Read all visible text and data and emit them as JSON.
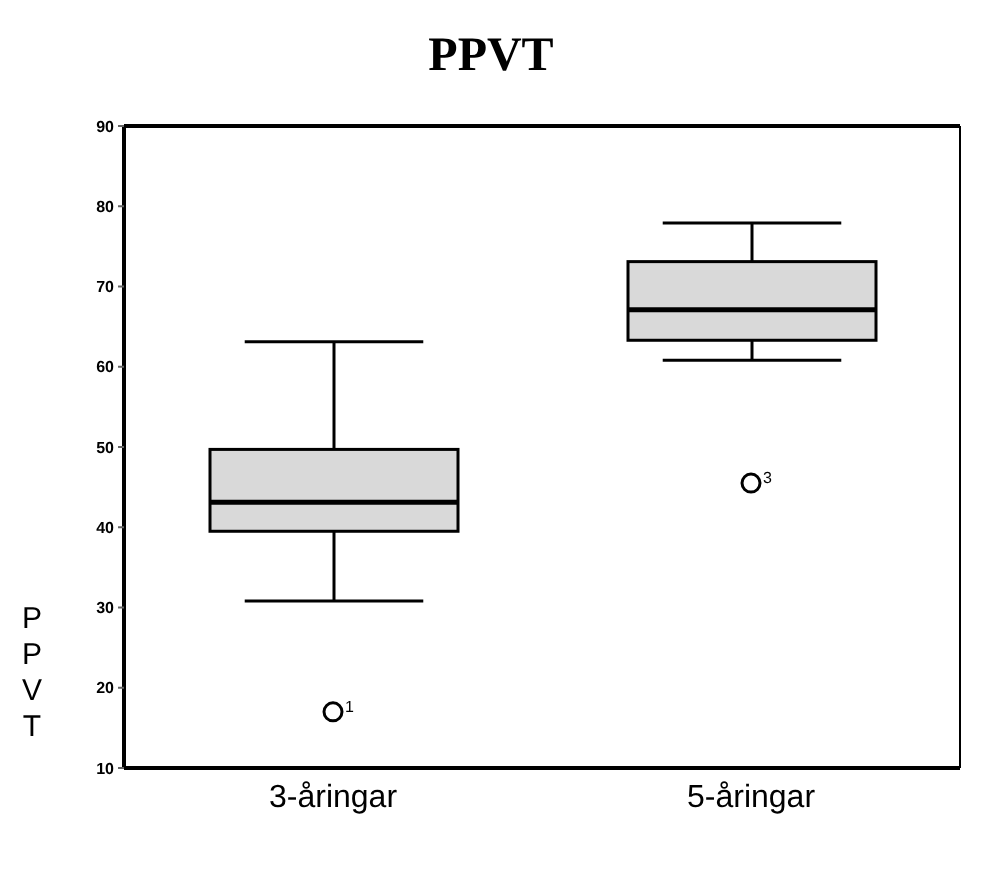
{
  "chart_data": {
    "type": "box",
    "title": "PPVT",
    "ylabel": "PPVT",
    "categories": [
      "3-åringar",
      "5-åringar"
    ],
    "color": "#d9d9d9",
    "boxes": [
      {
        "low": 30.8,
        "q1": 39.5,
        "median": 43.1,
        "q3": 49.7,
        "high": 63.1,
        "outliers": [
          17
        ]
      },
      {
        "low": 60.8,
        "q1": 63.3,
        "median": 67.1,
        "q3": 73.1,
        "high": 77.9,
        "outliers": [
          45.5
        ]
      }
    ],
    "ylim": [
      10,
      90
    ],
    "yticks": [
      10,
      20,
      30,
      40,
      50,
      60,
      70,
      80,
      90
    ],
    "annotations": [
      "1",
      "3"
    ]
  }
}
